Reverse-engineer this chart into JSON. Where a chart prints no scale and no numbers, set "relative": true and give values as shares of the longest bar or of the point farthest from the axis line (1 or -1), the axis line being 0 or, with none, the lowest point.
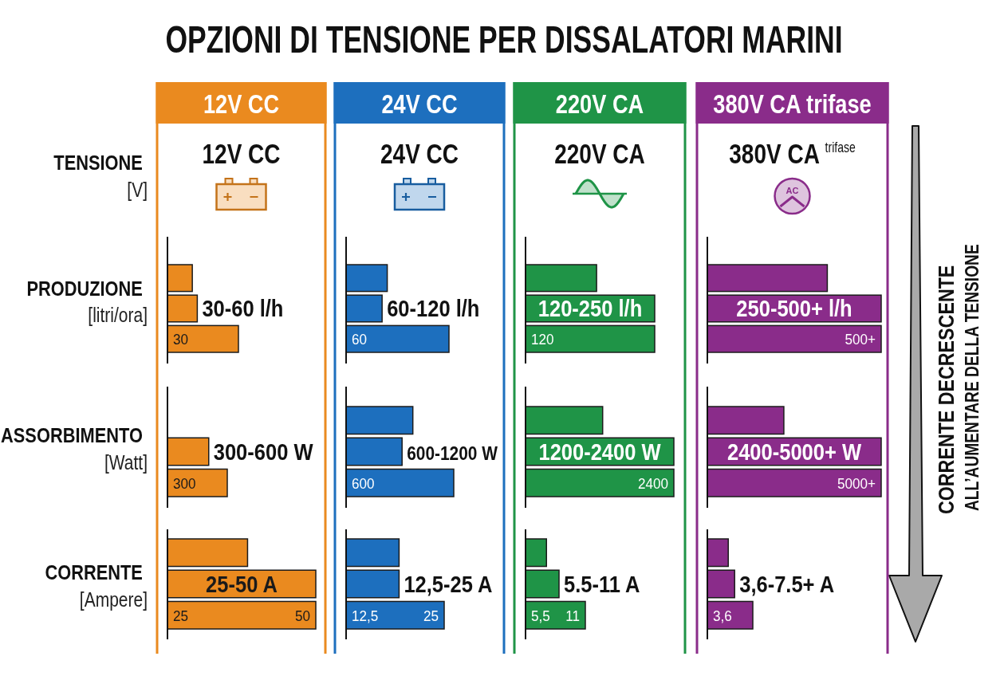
{
  "chart_data": [
    {
      "type": "other",
      "title": "OPZIONI DI TENSIONE PER DISSALATORI MARINI",
      "annotations": [
        "CORRENTE DECRESCENTE",
        "ALL’AUMENTARE DELLA TENSIONE"
      ]
    },
    {
      "type": "other",
      "title": "12V CC",
      "subtitle": "12V CC",
      "ylabel": "TENSIONE [V]",
      "color": "#ea8a1f"
    },
    {
      "type": "other",
      "title": "24V CC",
      "subtitle": "24V CC",
      "color": "#1d6fbe"
    },
    {
      "type": "other",
      "title": "220V CA",
      "subtitle": "220V CA",
      "color": "#1f9447"
    },
    {
      "type": "other",
      "title": "380V CA trifase",
      "subtitle": "380V CA $^{trifase}$",
      "annotations": [
        "AC"
      ],
      "color": "#8a2c8a"
    },
    {
      "type": "bar",
      "orientation": "horizontal",
      "relative": true,
      "categories": [
        null,
        null,
        null
      ],
      "values": [
        0.35,
        0.42,
        1
      ],
      "color": "#ea8a1f",
      "ylabel": "PRODUZIONE [litri/ora]",
      "annotations": [
        "30-60 l/h",
        "30"
      ]
    },
    {
      "type": "bar",
      "orientation": "horizontal",
      "relative": true,
      "categories": [
        null,
        null,
        null
      ],
      "values": [
        0.4,
        0.35,
        1
      ],
      "color": "#1d6fbe",
      "annotations": [
        "60-120 l/h",
        "60"
      ]
    },
    {
      "type": "bar",
      "orientation": "horizontal",
      "relative": true,
      "categories": [
        null,
        null,
        null
      ],
      "values": [
        0.55,
        1,
        1
      ],
      "color": "#1f9447",
      "annotations": [
        "120-250 l/h",
        "120"
      ]
    },
    {
      "type": "bar",
      "orientation": "horizontal",
      "relative": true,
      "categories": [
        null,
        null,
        null
      ],
      "values": [
        0.69,
        1,
        1
      ],
      "color": "#8a2c8a",
      "annotations": [
        "250-500+ l/h",
        "500+"
      ]
    },
    {
      "type": "bar",
      "orientation": "horizontal",
      "relative": true,
      "categories": [
        null,
        null
      ],
      "values": [
        0.69,
        1
      ],
      "color": "#ea8a1f",
      "ylabel": "ASSORBIMENTO [Watt]",
      "annotations": [
        "300-600 W",
        "300"
      ]
    },
    {
      "type": "bar",
      "orientation": "horizontal",
      "relative": true,
      "categories": [
        null,
        null,
        null
      ],
      "values": [
        0.62,
        0.52,
        1
      ],
      "color": "#1d6fbe",
      "annotations": [
        "600-1200 W",
        "600"
      ]
    },
    {
      "type": "bar",
      "orientation": "horizontal",
      "relative": true,
      "categories": [
        null,
        null,
        null
      ],
      "values": [
        0.52,
        1,
        1
      ],
      "color": "#1f9447",
      "annotations": [
        "1200-2400 W",
        "2400"
      ]
    },
    {
      "type": "bar",
      "orientation": "horizontal",
      "relative": true,
      "categories": [
        null,
        null,
        null
      ],
      "values": [
        0.44,
        1,
        1
      ],
      "color": "#8a2c8a",
      "annotations": [
        "2400-5000+ W",
        "5000+"
      ]
    },
    {
      "type": "bar",
      "orientation": "horizontal",
      "relative": true,
      "categories": [
        null,
        null,
        null
      ],
      "values": [
        0.54,
        1,
        1
      ],
      "color": "#ea8a1f",
      "ylabel": "CORRENTE [Ampere]",
      "annotations": [
        "25-50 A",
        "25",
        "50"
      ]
    },
    {
      "type": "bar",
      "orientation": "horizontal",
      "relative": true,
      "categories": [
        null,
        null,
        null
      ],
      "values": [
        0.54,
        0.54,
        1
      ],
      "color": "#1d6fbe",
      "annotations": [
        "12,5-25 A",
        "12,5",
        "25"
      ]
    },
    {
      "type": "bar",
      "orientation": "horizontal",
      "relative": true,
      "categories": [
        null,
        null,
        null
      ],
      "values": [
        0.35,
        0.56,
        1
      ],
      "color": "#1f9447",
      "annotations": [
        "5.5-11 A",
        "5,5",
        "11"
      ]
    },
    {
      "type": "bar",
      "orientation": "horizontal",
      "relative": true,
      "categories": [
        null,
        null,
        null
      ],
      "values": [
        0.46,
        0.6,
        1
      ],
      "color": "#8a2c8a",
      "annotations": [
        "3,6-7.5+ A",
        "3,6"
      ]
    }
  ]
}
